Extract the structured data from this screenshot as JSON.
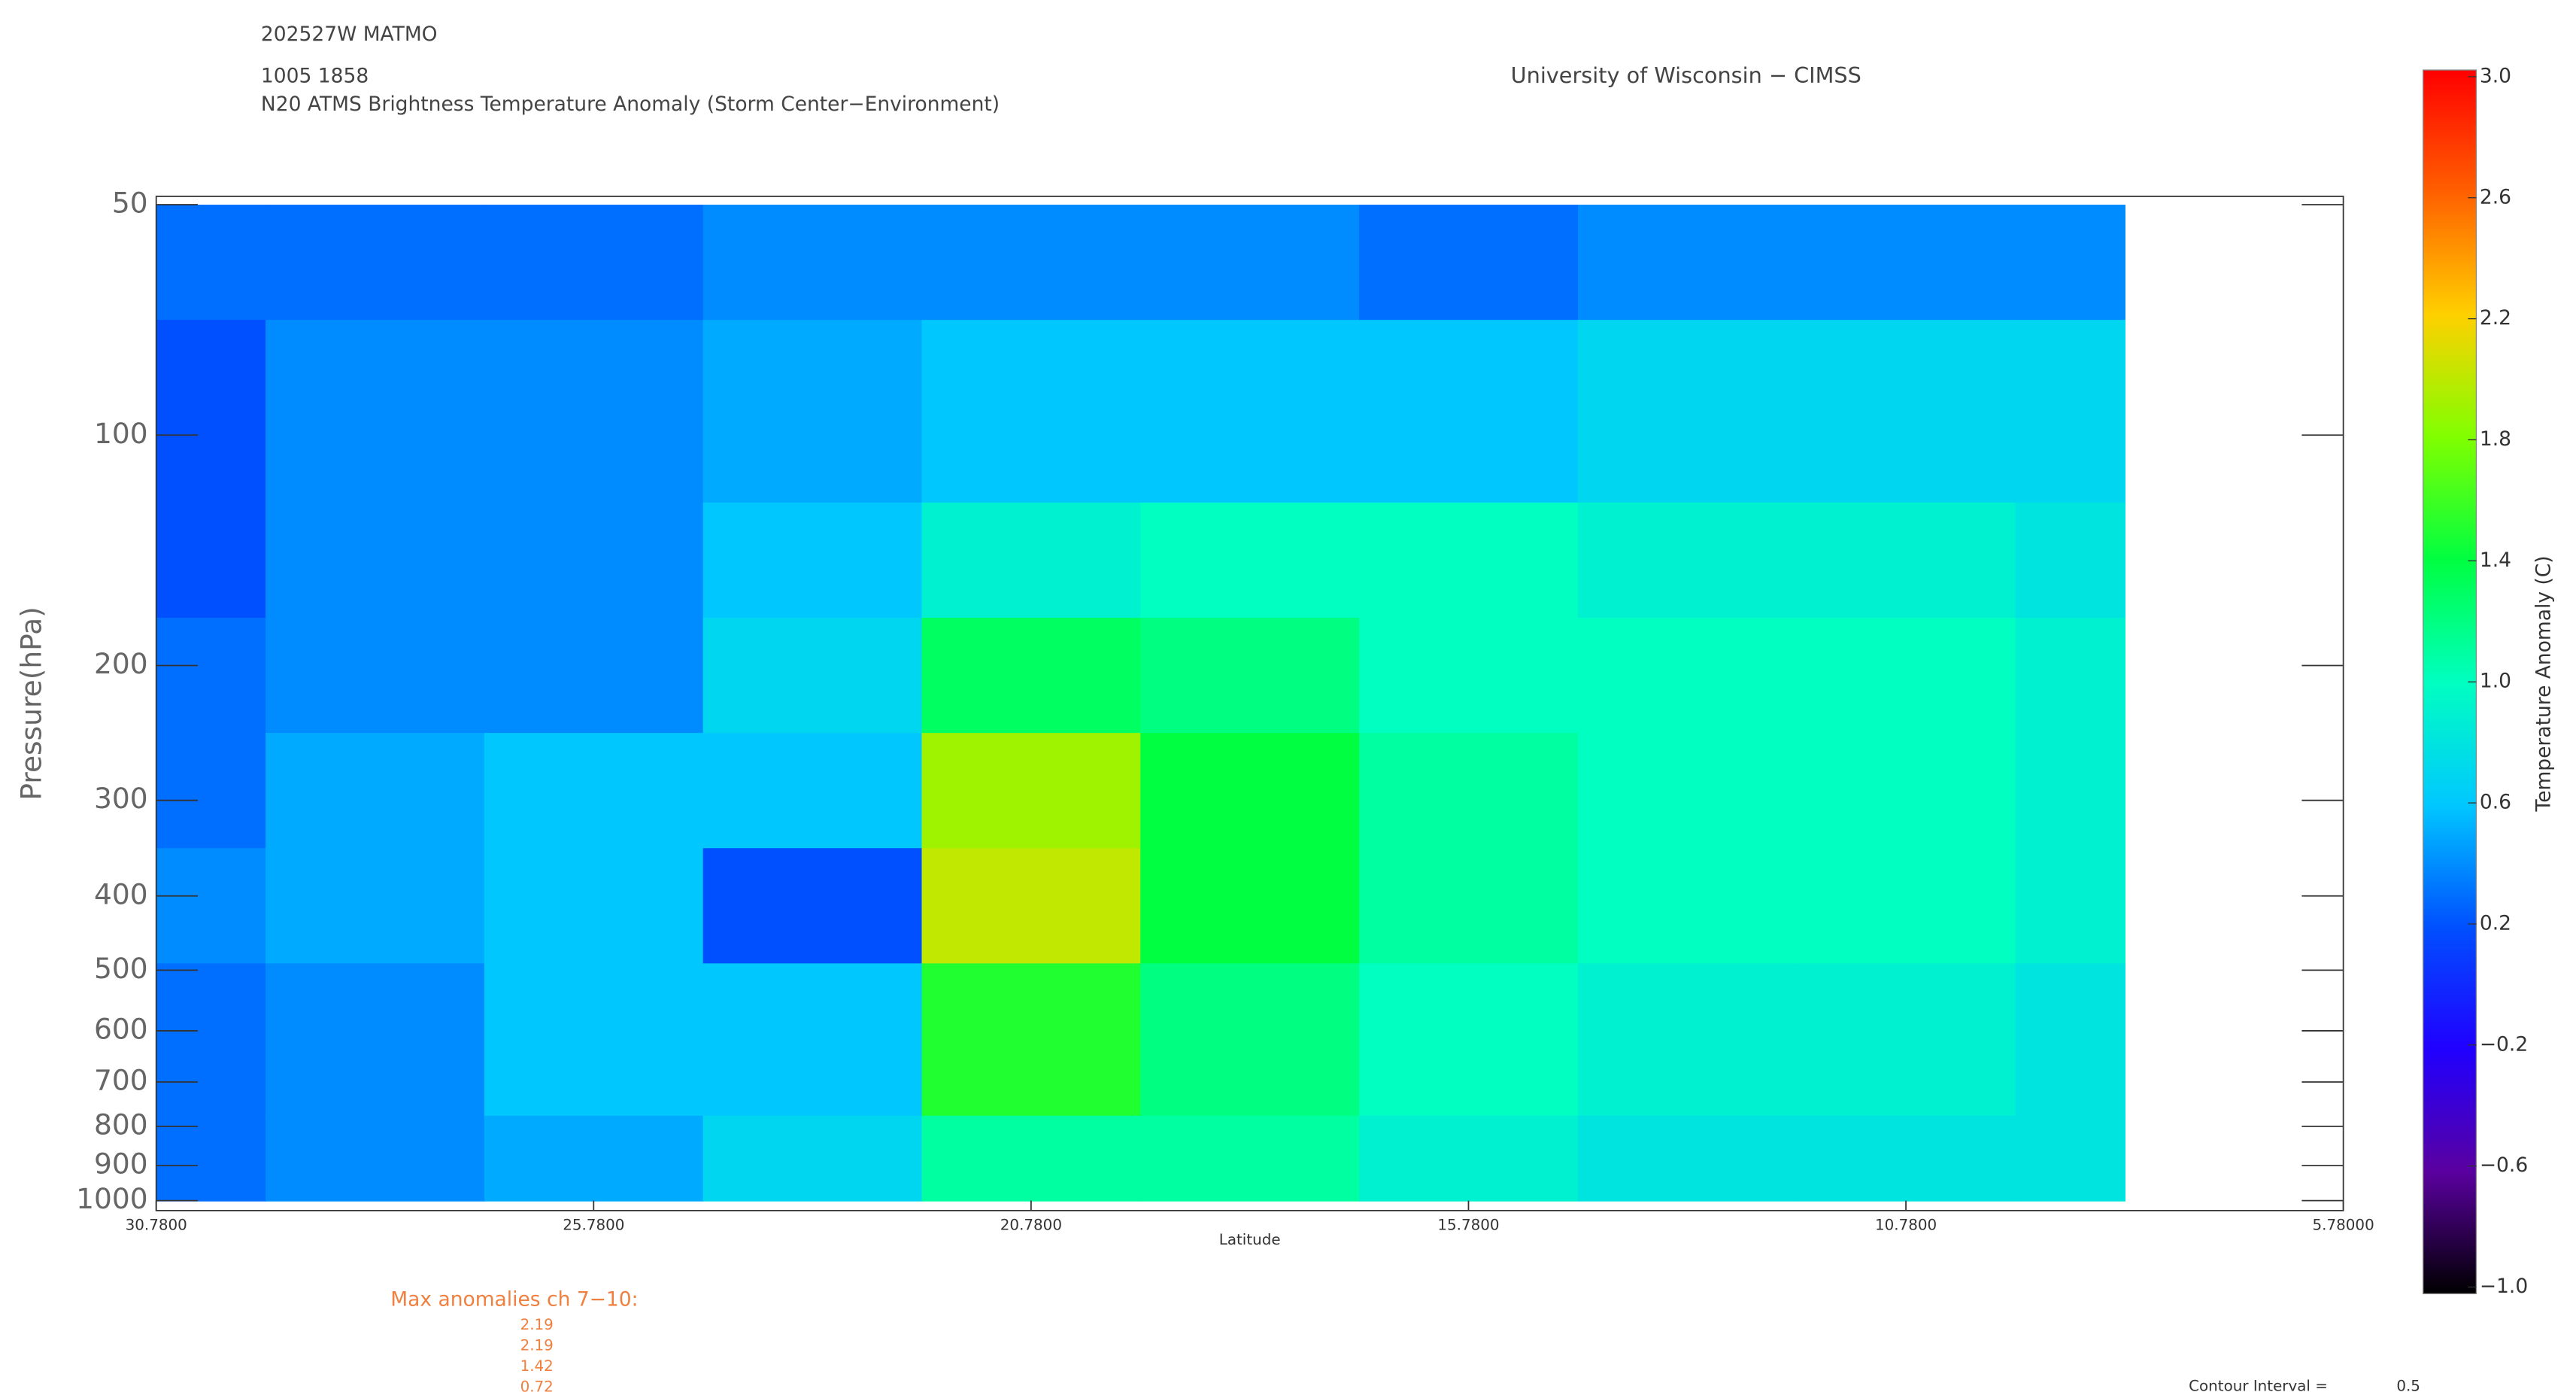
{
  "header": {
    "storm": "202527W MATMO",
    "time": "1005 1858",
    "title": "N20 ATMS Brightness Temperature Anomaly (Storm Center−Environment)",
    "institution": "University of Wisconsin − CIMSS"
  },
  "chart_data": {
    "type": "contour",
    "xlabel": "Latitude",
    "ylabel": "Pressure(hPa)",
    "xlim": [
      30.78,
      5.78
    ],
    "xticks": [
      {
        "value": 30.78,
        "label": "30.7800"
      },
      {
        "value": 25.78,
        "label": "25.7800"
      },
      {
        "value": 20.78,
        "label": "20.7800"
      },
      {
        "value": 15.78,
        "label": "15.7800"
      },
      {
        "value": 10.78,
        "label": "10.7800"
      },
      {
        "value": 5.78,
        "label": "5.78000"
      }
    ],
    "ylim": [
      1000,
      50
    ],
    "ylog": true,
    "yticks": [
      50,
      100,
      200,
      300,
      400,
      500,
      600,
      700,
      800,
      900,
      1000
    ],
    "x": [
      30.78,
      28.28,
      25.78,
      23.28,
      20.78,
      18.28,
      15.78,
      13.28,
      10.78,
      8.28
    ],
    "y": [
      50,
      100,
      150,
      200,
      300,
      400,
      600,
      1000
    ],
    "z": [
      [
        0.3,
        0.2,
        0.2,
        0.3,
        0.3,
        0.4,
        0.3,
        0.3
      ],
      [
        0.3,
        0.4,
        0.4,
        0.4,
        0.5,
        0.5,
        0.4,
        0.4
      ],
      [
        0.3,
        0.4,
        0.4,
        0.4,
        0.6,
        0.6,
        0.6,
        0.5
      ],
      [
        0.4,
        0.5,
        0.6,
        0.7,
        0.6,
        0.2,
        0.6,
        0.7
      ],
      [
        0.4,
        0.6,
        0.9,
        1.3,
        1.9,
        2.0,
        1.5,
        1.1
      ],
      [
        0.4,
        0.6,
        1.0,
        1.2,
        1.4,
        1.4,
        1.2,
        1.1
      ],
      [
        0.3,
        0.6,
        1.0,
        1.0,
        1.1,
        1.1,
        1.0,
        0.9
      ],
      [
        0.4,
        0.7,
        0.9,
        1.0,
        1.0,
        1.0,
        0.9,
        0.8
      ],
      [
        0.4,
        0.7,
        0.9,
        1.0,
        1.0,
        1.0,
        0.9,
        0.8
      ],
      [
        0.4,
        0.7,
        0.8,
        0.9,
        0.9,
        0.9,
        0.8,
        0.8
      ]
    ],
    "colorbar": {
      "label": "Temperature Anomaly (C)",
      "lim": [
        -1,
        3
      ],
      "ticks": [
        {
          "value": -1,
          "label": "−1.0"
        },
        {
          "value": -0.6,
          "label": "−0.6"
        },
        {
          "value": -0.2,
          "label": "−0.2"
        },
        {
          "value": 0.2,
          "label": "0.2"
        },
        {
          "value": 0.6,
          "label": "0.6"
        },
        {
          "value": 1.0,
          "label": "1.0"
        },
        {
          "value": 1.4,
          "label": "1.4"
        },
        {
          "value": 1.8,
          "label": "1.8"
        },
        {
          "value": 2.2,
          "label": "2.2"
        },
        {
          "value": 2.6,
          "label": "2.6"
        },
        {
          "value": 3.0,
          "label": "3.0"
        }
      ],
      "colors": [
        "#000000",
        "#5a00a0",
        "#2000ff",
        "#0050ff",
        "#00c8ff",
        "#00ffc0",
        "#00ff40",
        "#80ff00",
        "#ffd000",
        "#ff6000",
        "#ff0000"
      ]
    },
    "max_anomalies": {
      "title": "Max anomalies ch 7−10:",
      "values": [
        2.19,
        2.19,
        1.42,
        0.72
      ]
    },
    "contour_interval": {
      "label": "Contour Interval =",
      "value": 0.5
    }
  }
}
